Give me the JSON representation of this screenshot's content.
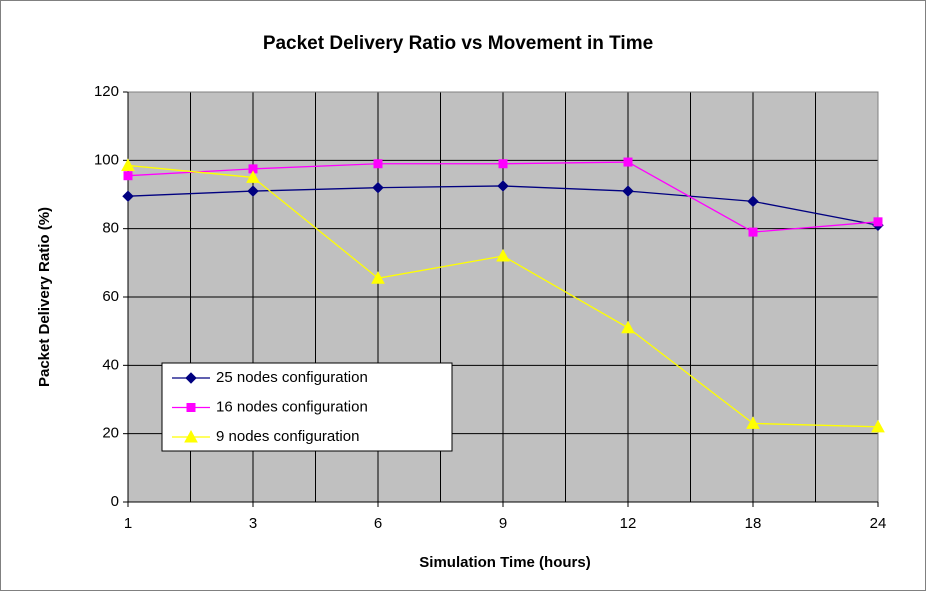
{
  "chart_data": {
    "type": "line",
    "title": "Packet Delivery Ratio vs Movement in Time",
    "x_label": "Simulation Time (hours)",
    "y_label": "Packet Delivery Ratio (%)",
    "categories": [
      "1",
      "3",
      "6",
      "9",
      "12",
      "18",
      "24"
    ],
    "series": [
      {
        "name": "25 nodes configuration",
        "color": "#000080",
        "marker": "diamond",
        "values": [
          89.5,
          91,
          92,
          92.5,
          91,
          88,
          81
        ]
      },
      {
        "name": "16 nodes configuration",
        "color": "#ff00ff",
        "marker": "square",
        "values": [
          95.5,
          97.5,
          99,
          99,
          99.5,
          79,
          82
        ]
      },
      {
        "name": "9 nodes configuration",
        "color": "#ffff00",
        "marker": "triangle",
        "values": [
          98.5,
          95,
          65.5,
          72,
          51,
          23,
          22
        ]
      }
    ],
    "ylim": [
      0,
      120
    ],
    "yticks": [
      0,
      20,
      40,
      60,
      80,
      100,
      120
    ],
    "grid": true,
    "plot_background": "#c0c0c0",
    "legend": "lower left"
  }
}
